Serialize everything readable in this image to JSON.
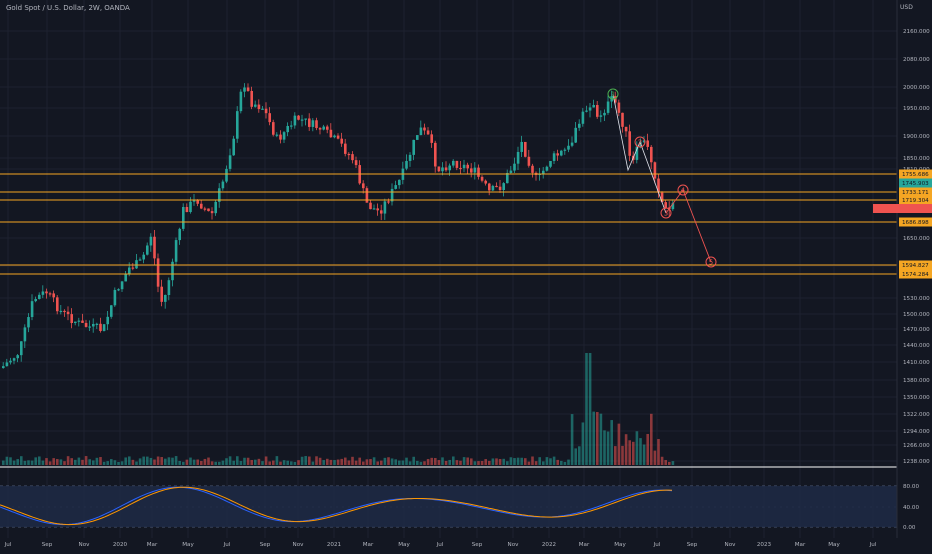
{
  "header": {
    "symbol_title": "Gold Spot / U.S. Dollar, 2W, OANDA",
    "currency": "USD"
  },
  "colors": {
    "background": "#131722",
    "grid": "#1e2230",
    "bull": "#26a69a",
    "bear": "#ef5350",
    "level_line": "#f5a623",
    "wave_green": "#4caf50",
    "wave_red": "#ef5350",
    "stoch_k": "#2962ff",
    "stoch_d": "#ff9800",
    "stoch_band": "#1e2a45"
  },
  "price_axis": {
    "labels": [
      "2160.000",
      "2080.000",
      "2000.000",
      "1950.000",
      "1900.000",
      "1850.000",
      "1810.000",
      "1760.000",
      "1650.000",
      "1590.000",
      "1530.000",
      "1500.000",
      "1470.000",
      "1440.000",
      "1410.000",
      "1380.000",
      "1350.000",
      "1322.000",
      "1294.000",
      "1266.000",
      "1238.000"
    ]
  },
  "levels": [
    {
      "label": "1755.686",
      "color": "#f5a623"
    },
    {
      "label": "1745.903",
      "color": "#26a69a"
    },
    {
      "label": "1733.171",
      "color": "#f5a623"
    },
    {
      "label": "1719.304",
      "color": "#f5a623"
    },
    {
      "label": "1686.898",
      "color": "#f5a623"
    },
    {
      "label": "1594.827",
      "color": "#f5a623"
    },
    {
      "label": "1574.284",
      "color": "#f5a623"
    }
  ],
  "last_price_marker": {
    "label": "",
    "color": "#ef5350"
  },
  "waves": [
    {
      "label": "1",
      "color": "#4caf50"
    },
    {
      "label": "2",
      "color": "#ef5350"
    },
    {
      "label": "3",
      "color": "#ef5350"
    },
    {
      "label": "4",
      "color": "#ef5350"
    },
    {
      "label": "5",
      "color": "#ef5350"
    }
  ],
  "stoch_axis": {
    "labels": [
      "80.00",
      "40.00",
      "0.00"
    ]
  },
  "time_axis": {
    "labels": [
      "Jul",
      "Sep",
      "Nov",
      "2020",
      "Mar",
      "May",
      "Jul",
      "Sep",
      "Nov",
      "2021",
      "Mar",
      "May",
      "Jul",
      "Sep",
      "Nov",
      "2022",
      "Mar",
      "May",
      "Jul",
      "Sep",
      "Nov",
      "2023",
      "Mar",
      "May",
      "Jul"
    ]
  }
}
